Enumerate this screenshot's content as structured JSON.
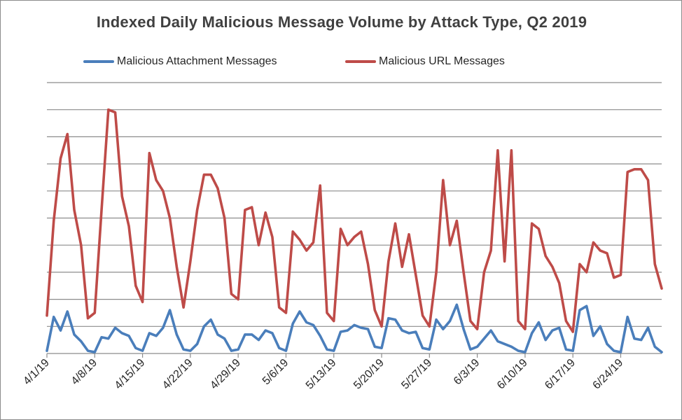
{
  "chart_data": {
    "type": "line",
    "title": "Indexed Daily Malicious Message Volume by Attack Type, Q2 2019",
    "xlabel": "",
    "ylabel": "",
    "grid": true,
    "legend_position": "top",
    "ylim": [
      0,
      10
    ],
    "x_tick_labels": [
      "4/1/19",
      "4/8/19",
      "4/15/19",
      "4/22/19",
      "4/29/19",
      "5/6/19",
      "5/13/19",
      "5/20/19",
      "5/27/19",
      "6/3/19",
      "6/10/19",
      "6/17/19",
      "6/24/19"
    ],
    "x_start": "4/1/19",
    "series": [
      {
        "name": "Malicious Attachment Messages",
        "color": "#4a7ebb",
        "values": [
          0.1,
          1.35,
          0.85,
          1.55,
          0.7,
          0.45,
          0.1,
          0.05,
          0.6,
          0.55,
          0.95,
          0.75,
          0.65,
          0.2,
          0.1,
          0.75,
          0.65,
          0.95,
          1.6,
          0.7,
          0.15,
          0.1,
          0.35,
          1.0,
          1.25,
          0.7,
          0.55,
          0.1,
          0.15,
          0.7,
          0.7,
          0.5,
          0.85,
          0.75,
          0.2,
          0.1,
          1.1,
          1.55,
          1.15,
          1.05,
          0.65,
          0.15,
          0.1,
          0.8,
          0.85,
          1.05,
          0.95,
          0.9,
          0.25,
          0.2,
          1.3,
          1.25,
          0.85,
          0.75,
          0.8,
          0.2,
          0.15,
          1.25,
          0.9,
          1.2,
          1.8,
          0.9,
          0.15,
          0.25,
          0.55,
          0.85,
          0.45,
          0.35,
          0.25,
          0.1,
          0.05,
          0.75,
          1.15,
          0.5,
          0.85,
          0.95,
          0.15,
          0.1,
          1.6,
          1.75,
          0.65,
          1.0,
          0.35,
          0.1,
          0.05,
          1.35,
          0.55,
          0.5,
          0.95,
          0.25,
          0.05
        ]
      },
      {
        "name": "Malicious URL Messages",
        "color": "#be4b48",
        "values": [
          1.4,
          4.9,
          7.2,
          8.1,
          5.3,
          4.0,
          1.3,
          1.5,
          5.3,
          9.0,
          8.9,
          5.8,
          4.7,
          2.5,
          1.9,
          7.4,
          6.4,
          6.0,
          5.0,
          3.2,
          1.7,
          3.4,
          5.3,
          6.6,
          6.6,
          6.1,
          5.0,
          2.2,
          2.0,
          5.3,
          5.4,
          4.0,
          5.2,
          4.3,
          1.7,
          1.5,
          4.5,
          4.2,
          3.8,
          4.1,
          6.2,
          1.5,
          1.2,
          4.6,
          4.0,
          4.3,
          4.5,
          3.3,
          1.6,
          1.0,
          3.4,
          4.8,
          3.2,
          4.4,
          2.9,
          1.4,
          1.0,
          3.0,
          6.4,
          4.0,
          4.9,
          3.0,
          1.2,
          0.9,
          3.0,
          3.8,
          7.5,
          3.4,
          7.5,
          1.2,
          0.9,
          4.8,
          4.6,
          3.6,
          3.2,
          2.6,
          1.2,
          0.8,
          3.3,
          3.0,
          4.1,
          3.8,
          3.7,
          2.8,
          2.9,
          6.7,
          6.8,
          6.8,
          6.4,
          3.3,
          2.4
        ]
      }
    ]
  }
}
